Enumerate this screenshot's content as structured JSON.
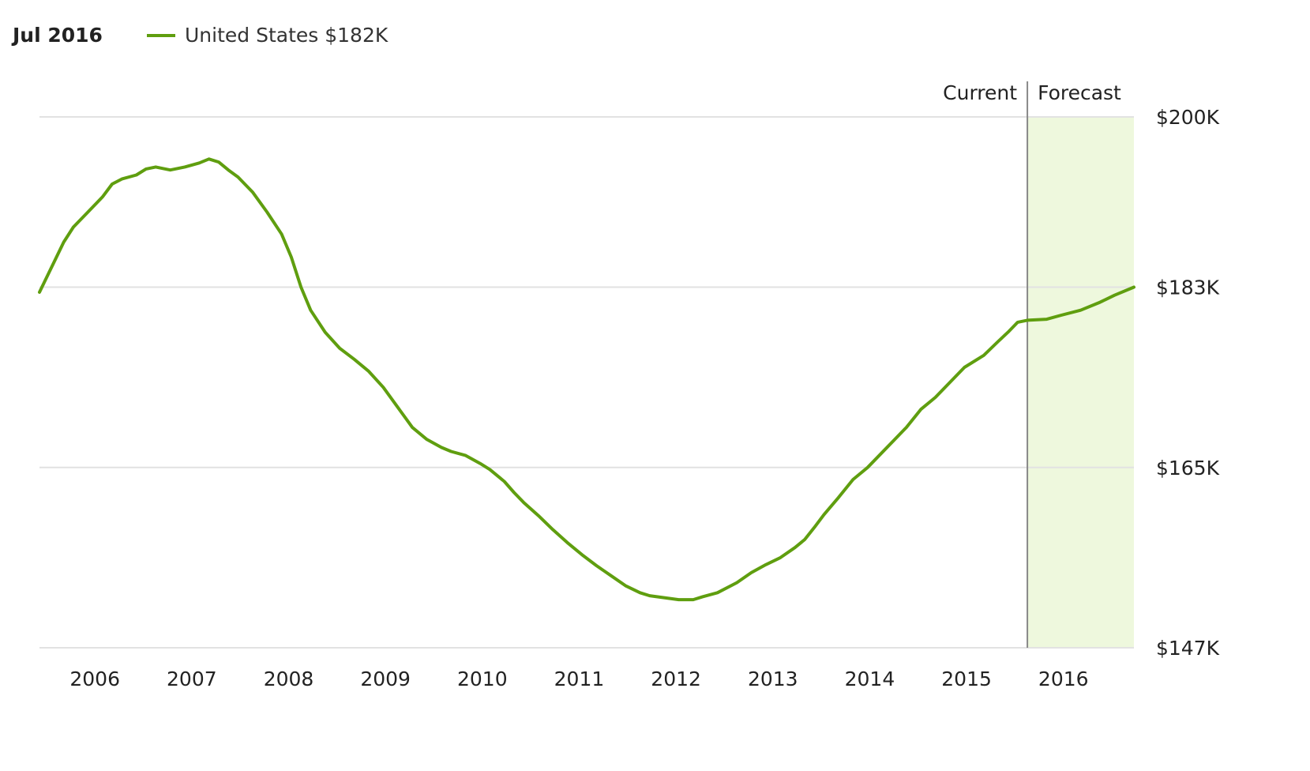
{
  "legend": {
    "date": "Jul 2016",
    "series_label": "United States $182K"
  },
  "colors": {
    "line": "#5f9e0f",
    "forecast_fill": "#eef8dd",
    "grid": "#e2e2e2",
    "divider": "#888888"
  },
  "chart_data": {
    "type": "line",
    "current_label": "Current",
    "forecast_label": "Forecast",
    "forecast_start": 2015.75,
    "xlim": [
      2005.55,
      2016.85
    ],
    "ylim": [
      147,
      200
    ],
    "y_ticks": [
      {
        "value": 200,
        "label": "$200K"
      },
      {
        "value": 183,
        "label": "$183K"
      },
      {
        "value": 165,
        "label": "$165K"
      },
      {
        "value": 147,
        "label": "$147K"
      }
    ],
    "x_ticks": [
      {
        "value": 2006,
        "label": "2006"
      },
      {
        "value": 2007,
        "label": "2007"
      },
      {
        "value": 2008,
        "label": "2008"
      },
      {
        "value": 2009,
        "label": "2009"
      },
      {
        "value": 2010,
        "label": "2010"
      },
      {
        "value": 2011,
        "label": "2011"
      },
      {
        "value": 2012,
        "label": "2012"
      },
      {
        "value": 2013,
        "label": "2013"
      },
      {
        "value": 2014,
        "label": "2014"
      },
      {
        "value": 2015,
        "label": "2015"
      },
      {
        "value": 2016,
        "label": "2016"
      }
    ],
    "series": [
      {
        "name": "United States",
        "points": [
          [
            2005.55,
            182.5
          ],
          [
            2005.65,
            184.5
          ],
          [
            2005.8,
            187.5
          ],
          [
            2005.9,
            189.0
          ],
          [
            2006.05,
            190.5
          ],
          [
            2006.2,
            192.0
          ],
          [
            2006.3,
            193.3
          ],
          [
            2006.4,
            193.8
          ],
          [
            2006.55,
            194.2
          ],
          [
            2006.65,
            194.8
          ],
          [
            2006.75,
            195.0
          ],
          [
            2006.9,
            194.7
          ],
          [
            2007.05,
            195.0
          ],
          [
            2007.2,
            195.4
          ],
          [
            2007.3,
            195.8
          ],
          [
            2007.4,
            195.5
          ],
          [
            2007.5,
            194.7
          ],
          [
            2007.6,
            194.0
          ],
          [
            2007.75,
            192.5
          ],
          [
            2007.9,
            190.5
          ],
          [
            2008.05,
            188.3
          ],
          [
            2008.15,
            186.0
          ],
          [
            2008.25,
            183.0
          ],
          [
            2008.35,
            180.7
          ],
          [
            2008.5,
            178.5
          ],
          [
            2008.65,
            176.9
          ],
          [
            2008.8,
            175.8
          ],
          [
            2008.95,
            174.6
          ],
          [
            2009.1,
            173.0
          ],
          [
            2009.25,
            171.0
          ],
          [
            2009.4,
            169.0
          ],
          [
            2009.55,
            167.8
          ],
          [
            2009.7,
            167.0
          ],
          [
            2009.8,
            166.6
          ],
          [
            2009.95,
            166.2
          ],
          [
            2010.1,
            165.4
          ],
          [
            2010.2,
            164.8
          ],
          [
            2010.35,
            163.6
          ],
          [
            2010.45,
            162.5
          ],
          [
            2010.55,
            161.5
          ],
          [
            2010.7,
            160.2
          ],
          [
            2010.85,
            158.8
          ],
          [
            2011.0,
            157.5
          ],
          [
            2011.15,
            156.3
          ],
          [
            2011.3,
            155.2
          ],
          [
            2011.45,
            154.2
          ],
          [
            2011.6,
            153.2
          ],
          [
            2011.75,
            152.5
          ],
          [
            2011.85,
            152.2
          ],
          [
            2012.0,
            152.0
          ],
          [
            2012.15,
            151.8
          ],
          [
            2012.3,
            151.8
          ],
          [
            2012.4,
            152.1
          ],
          [
            2012.55,
            152.5
          ],
          [
            2012.75,
            153.5
          ],
          [
            2012.9,
            154.5
          ],
          [
            2013.05,
            155.3
          ],
          [
            2013.2,
            156.0
          ],
          [
            2013.35,
            157.0
          ],
          [
            2013.45,
            157.8
          ],
          [
            2013.55,
            159.0
          ],
          [
            2013.65,
            160.3
          ],
          [
            2013.8,
            162.0
          ],
          [
            2013.95,
            163.8
          ],
          [
            2014.1,
            165.0
          ],
          [
            2014.25,
            166.5
          ],
          [
            2014.35,
            167.5
          ],
          [
            2014.5,
            169.0
          ],
          [
            2014.65,
            170.8
          ],
          [
            2014.8,
            172.0
          ],
          [
            2014.95,
            173.5
          ],
          [
            2015.1,
            175.0
          ],
          [
            2015.3,
            176.2
          ],
          [
            2015.45,
            177.6
          ],
          [
            2015.55,
            178.5
          ],
          [
            2015.65,
            179.5
          ],
          [
            2015.75,
            179.7
          ],
          [
            2015.95,
            179.8
          ],
          [
            2016.1,
            180.2
          ],
          [
            2016.3,
            180.7
          ],
          [
            2016.5,
            181.5
          ],
          [
            2016.65,
            182.2
          ],
          [
            2016.85,
            183.0
          ]
        ]
      }
    ]
  }
}
